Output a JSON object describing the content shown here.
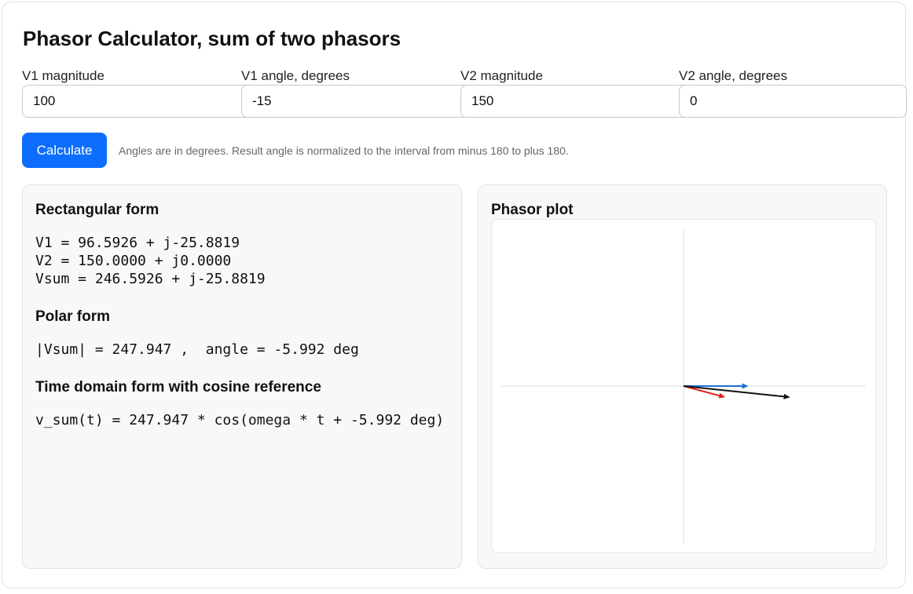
{
  "page": {
    "title": "Phasor Calculator, sum of two phasors"
  },
  "inputs": {
    "v1_magnitude": {
      "label": "V1 magnitude",
      "value": "100"
    },
    "v1_angle": {
      "label": "V1 angle, degrees",
      "value": "-15"
    },
    "v2_magnitude": {
      "label": "V2 magnitude",
      "value": "150"
    },
    "v2_angle": {
      "label": "V2 angle, degrees",
      "value": "0"
    }
  },
  "actions": {
    "calculate_label": "Calculate",
    "hint": "Angles are in degrees. Result angle is normalized to the interval from minus 180 to plus 180."
  },
  "results": {
    "rectangular": {
      "heading": "Rectangular form",
      "v1": "V1 = 96.5926 + j-25.8819",
      "v2": "V2 = 150.0000 + j0.0000",
      "vsum": "Vsum = 246.5926 + j-25.8819"
    },
    "polar": {
      "heading": "Polar form",
      "line": "|Vsum| = 247.947 ,  angle = -5.992 deg"
    },
    "time_domain": {
      "heading": "Time domain form with cosine reference",
      "line": "v_sum(t) = 247.947 * cos(omega * t + -5.992 deg)"
    }
  },
  "plot": {
    "heading": "Phasor plot",
    "phasors": [
      {
        "name": "V1",
        "magnitude": 100,
        "angle_deg": -15,
        "color": "#e0201b"
      },
      {
        "name": "V2",
        "magnitude": 150,
        "angle_deg": 0,
        "color": "#1c6fd1"
      },
      {
        "name": "Vsum",
        "magnitude": 247.947,
        "angle_deg": -5.992,
        "color": "#111111"
      }
    ],
    "axis_color": "#e9e9e9"
  }
}
